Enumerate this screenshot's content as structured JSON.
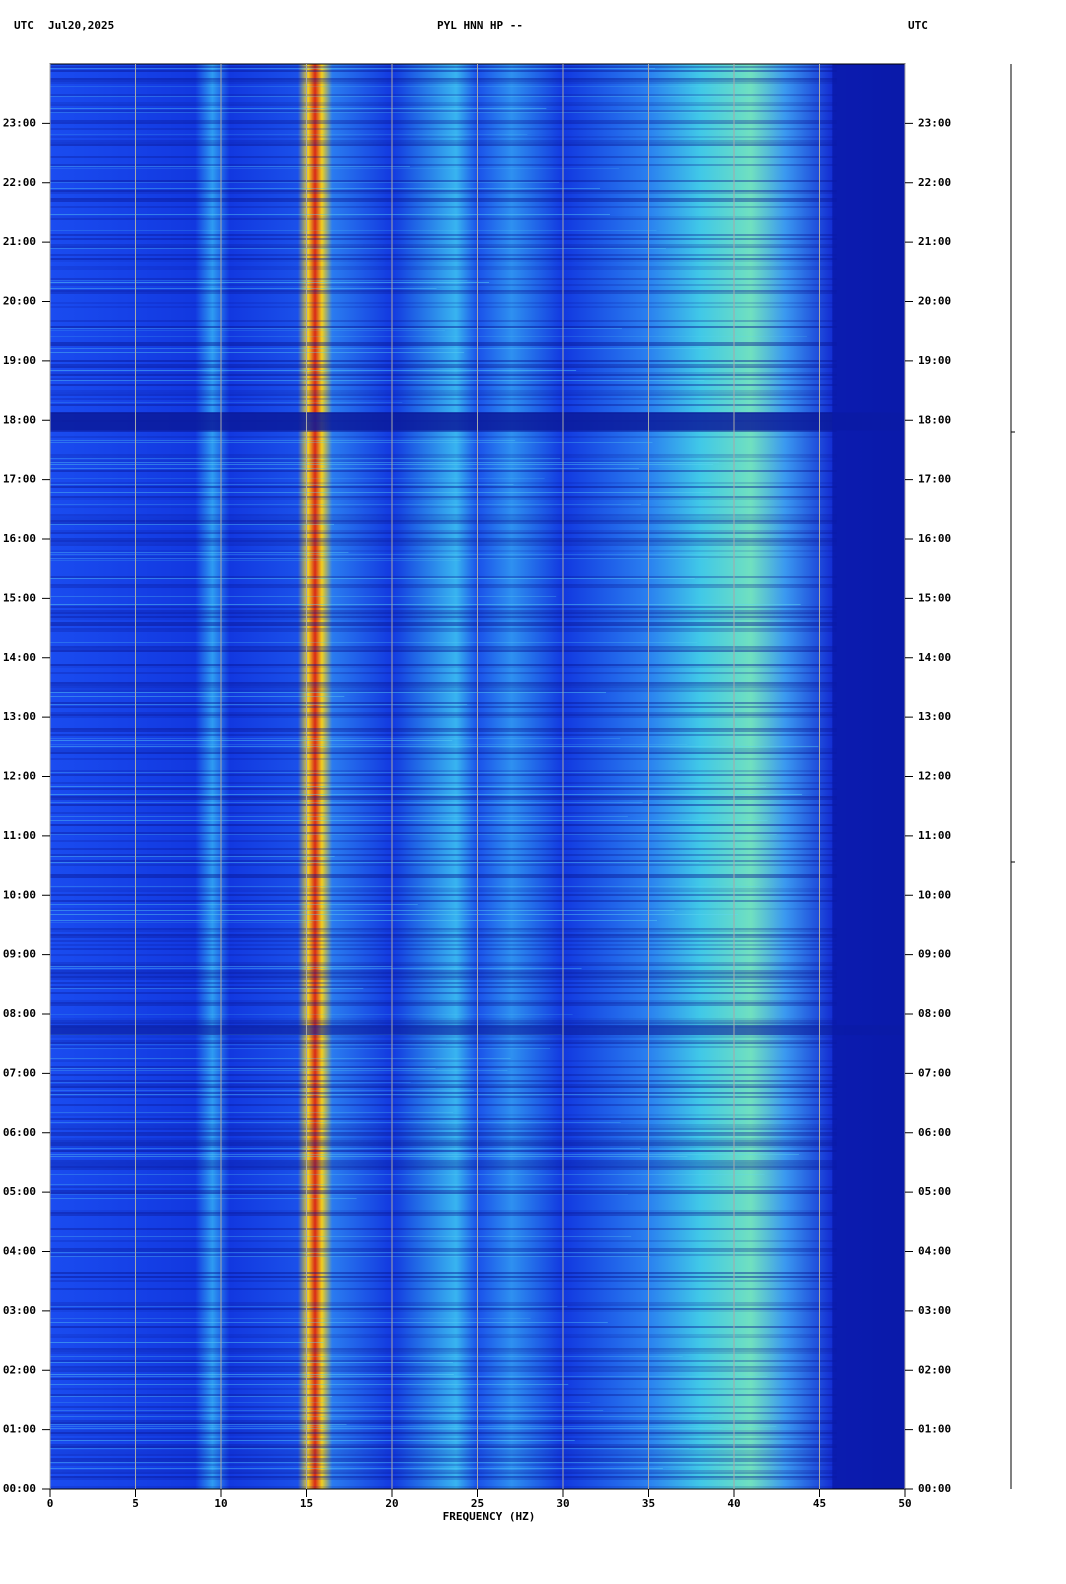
{
  "chart_data": {
    "type": "spectrogram",
    "title": "PYL HNN HP --",
    "left_header": "UTC",
    "date": "Jul20,2025",
    "right_header": "UTC",
    "xlabel": "FREQUENCY (HZ)",
    "xlim": [
      0,
      50
    ],
    "xticks": [
      0,
      5,
      10,
      15,
      20,
      25,
      30,
      35,
      40,
      45,
      50
    ],
    "ylim": [
      0,
      24
    ],
    "yticks": [
      {
        "value": 0,
        "label": "00:00"
      },
      {
        "value": 1,
        "label": "01:00"
      },
      {
        "value": 2,
        "label": "02:00"
      },
      {
        "value": 3,
        "label": "03:00"
      },
      {
        "value": 4,
        "label": "04:00"
      },
      {
        "value": 5,
        "label": "05:00"
      },
      {
        "value": 6,
        "label": "06:00"
      },
      {
        "value": 7,
        "label": "07:00"
      },
      {
        "value": 8,
        "label": "08:00"
      },
      {
        "value": 9,
        "label": "09:00"
      },
      {
        "value": 10,
        "label": "10:00"
      },
      {
        "value": 11,
        "label": "11:00"
      },
      {
        "value": 12,
        "label": "12:00"
      },
      {
        "value": 13,
        "label": "13:00"
      },
      {
        "value": 14,
        "label": "14:00"
      },
      {
        "value": 15,
        "label": "15:00"
      },
      {
        "value": 16,
        "label": "16:00"
      },
      {
        "value": 17,
        "label": "17:00"
      },
      {
        "value": 18,
        "label": "18:00"
      },
      {
        "value": 19,
        "label": "19:00"
      },
      {
        "value": 20,
        "label": "20:00"
      },
      {
        "value": 21,
        "label": "21:00"
      },
      {
        "value": 22,
        "label": "22:00"
      },
      {
        "value": 23,
        "label": "23:00"
      }
    ],
    "grid": true
  }
}
